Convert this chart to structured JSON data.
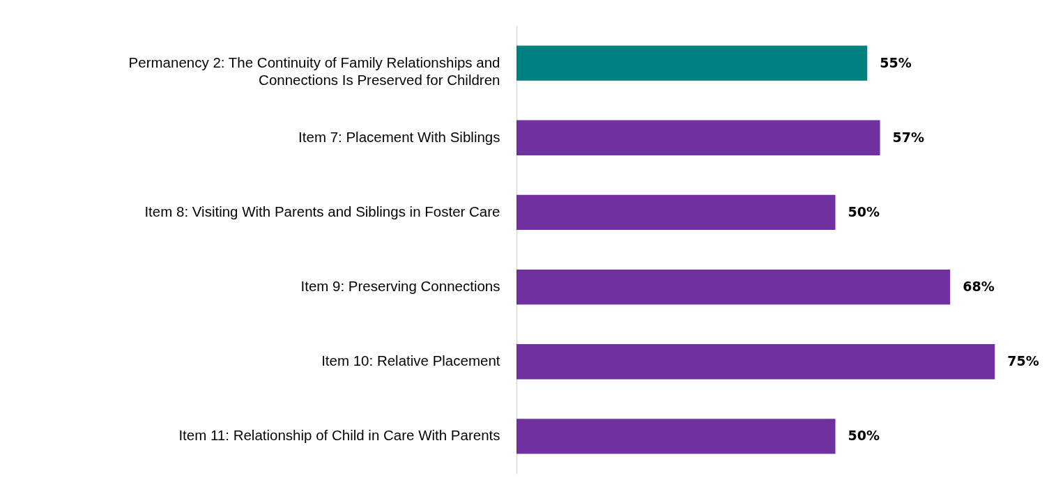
{
  "chart_data": {
    "type": "bar",
    "orientation": "horizontal",
    "categories": [
      "Permanency 2: The Continuity of Family Relationships and Connections Is Preserved for Children",
      "Item 7: Placement With Siblings",
      "Item 8: Visiting With Parents and Siblings in Foster Care",
      "Item 9: Preserving Connections",
      "Item 10: Relative Placement",
      "Item 11: Relationship of Child in Care With Parents"
    ],
    "values": [
      55,
      57,
      50,
      68,
      75,
      50
    ],
    "colors": [
      "#008080",
      "#7030a0",
      "#7030a0",
      "#7030a0",
      "#7030a0",
      "#7030a0"
    ],
    "value_labels": [
      "55%",
      "57%",
      "50%",
      "68%",
      "75%",
      "50%"
    ]
  }
}
